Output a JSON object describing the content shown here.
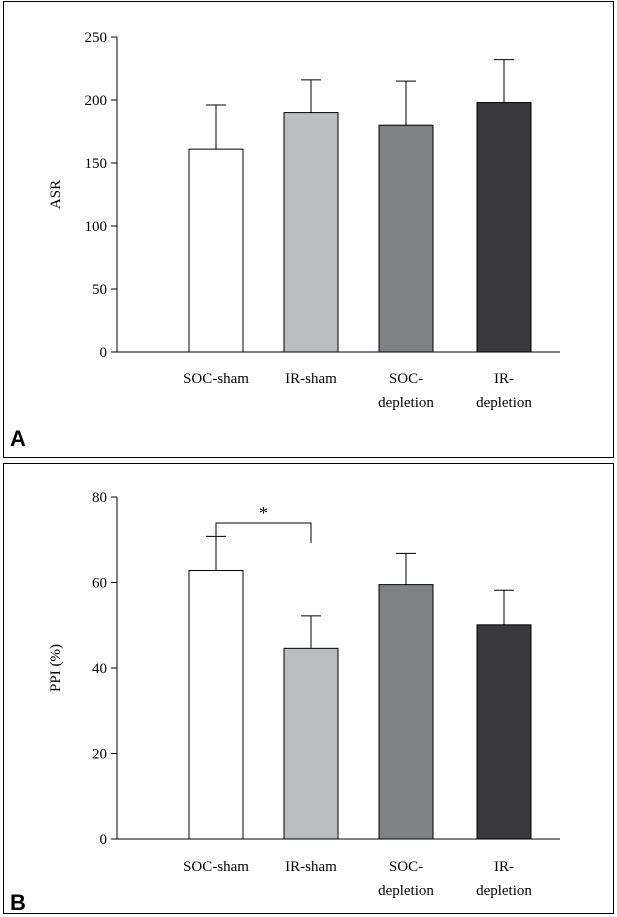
{
  "chart_data": [
    {
      "type": "bar",
      "panel_label": "A",
      "ylabel": "ASR",
      "ylim": [
        0,
        250
      ],
      "yticks": [
        0,
        50,
        100,
        150,
        200,
        250
      ],
      "categories": [
        [
          "SOC-sham"
        ],
        [
          "IR-sham"
        ],
        [
          "SOC-",
          "depletion"
        ],
        [
          "IR-",
          "depletion"
        ]
      ],
      "values": [
        161,
        190,
        180,
        198
      ],
      "errors": [
        35,
        26,
        35,
        34
      ],
      "colors": [
        "#ffffff",
        "#bcbdc0",
        "#808184",
        "#3a3a3c"
      ]
    },
    {
      "type": "bar",
      "panel_label": "B",
      "ylabel": "PPI (%)",
      "ylim": [
        0,
        80
      ],
      "yticks": [
        0,
        20,
        40,
        60,
        80
      ],
      "categories": [
        [
          "SOC-sham"
        ],
        [
          "IR-sham"
        ],
        [
          "SOC-",
          "depletion"
        ],
        [
          "IR-",
          "depletion"
        ]
      ],
      "values": [
        62.8,
        44.6,
        59.5,
        50.1
      ],
      "errors": [
        8.0,
        7.6,
        7.3,
        8.1
      ],
      "colors": [
        "#ffffff",
        "#bcbdc0",
        "#808184",
        "#3a3a3c"
      ],
      "significance": {
        "from": 0,
        "to": 1,
        "label": "*"
      }
    }
  ]
}
